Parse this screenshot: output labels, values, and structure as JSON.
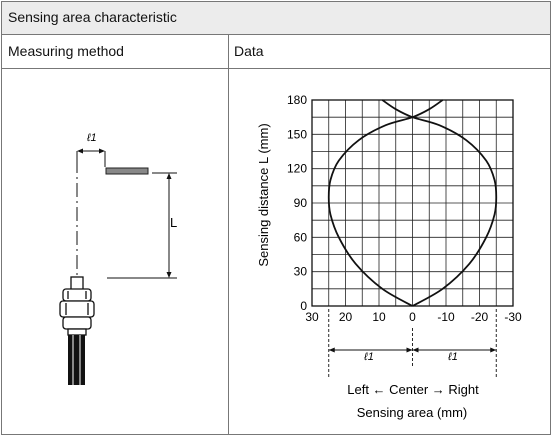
{
  "table": {
    "title": "Sensing area characteristic",
    "col1_header": "Measuring method",
    "col2_header": "Data"
  },
  "diagram": {
    "l1_label": "ℓ1",
    "l_label": "L"
  },
  "chart_data": {
    "type": "line",
    "xlabel": "Sensing area (mm)",
    "ylabel": "Sensing distance L (mm)",
    "x_ticks": [
      "30",
      "20",
      "10",
      "0",
      "-10",
      "-20",
      "-30"
    ],
    "y_ticks": [
      "180",
      "150",
      "120",
      "90",
      "60",
      "30",
      "0"
    ],
    "xlim": [
      30,
      -30
    ],
    "ylim": [
      0,
      180
    ],
    "grid": true,
    "bottom_labels": {
      "l1_left": "ℓ1",
      "l1_right": "ℓ1",
      "direction": "Left ← Center → Right"
    },
    "series": [
      {
        "values": [
          {
            "x": 0,
            "y": 0
          },
          {
            "x": 9,
            "y": 15
          },
          {
            "x": 17,
            "y": 37
          },
          {
            "x": 22,
            "y": 60
          },
          {
            "x": 24.5,
            "y": 80
          },
          {
            "x": 25,
            "y": 95
          },
          {
            "x": 24.5,
            "y": 110
          },
          {
            "x": 22,
            "y": 127
          },
          {
            "x": 16,
            "y": 145
          },
          {
            "x": 8,
            "y": 158
          },
          {
            "x": 0,
            "y": 165
          },
          {
            "x": -5,
            "y": 172
          },
          {
            "x": -9,
            "y": 180
          }
        ]
      },
      {
        "values": [
          {
            "x": 0,
            "y": 0
          },
          {
            "x": -9,
            "y": 15
          },
          {
            "x": -17,
            "y": 37
          },
          {
            "x": -22,
            "y": 60
          },
          {
            "x": -24.5,
            "y": 80
          },
          {
            "x": -25,
            "y": 95
          },
          {
            "x": -24.5,
            "y": 110
          },
          {
            "x": -22,
            "y": 127
          },
          {
            "x": -16,
            "y": 145
          },
          {
            "x": -8,
            "y": 158
          },
          {
            "x": 0,
            "y": 165
          },
          {
            "x": 5,
            "y": 172
          },
          {
            "x": 9,
            "y": 180
          }
        ]
      }
    ]
  }
}
